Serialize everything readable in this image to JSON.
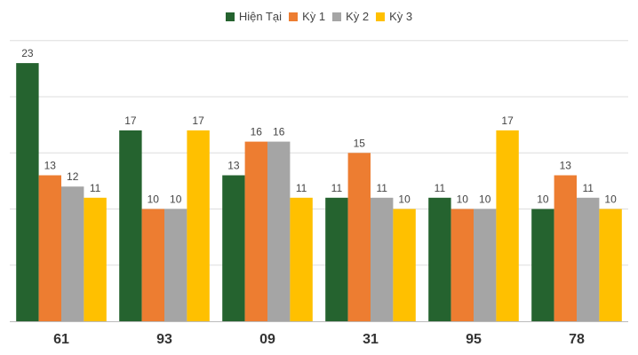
{
  "chart_data": {
    "type": "bar",
    "title": "",
    "xlabel": "",
    "ylabel": "",
    "categories": [
      "61",
      "93",
      "09",
      "31",
      "95",
      "78"
    ],
    "series": [
      {
        "name": "Hiện Tại",
        "color": "#25632f",
        "values": [
          23,
          17,
          13,
          11,
          11,
          10
        ]
      },
      {
        "name": "Kỳ 1",
        "color": "#ed7d31",
        "values": [
          13,
          10,
          16,
          15,
          10,
          13
        ]
      },
      {
        "name": "Kỳ 2",
        "color": "#a5a5a5",
        "values": [
          12,
          10,
          16,
          11,
          10,
          11
        ]
      },
      {
        "name": "Kỳ 3",
        "color": "#ffc000",
        "values": [
          11,
          17,
          11,
          10,
          17,
          10
        ]
      }
    ],
    "ylim": [
      0,
      25
    ],
    "grid": true,
    "legend_position": "top-center"
  }
}
